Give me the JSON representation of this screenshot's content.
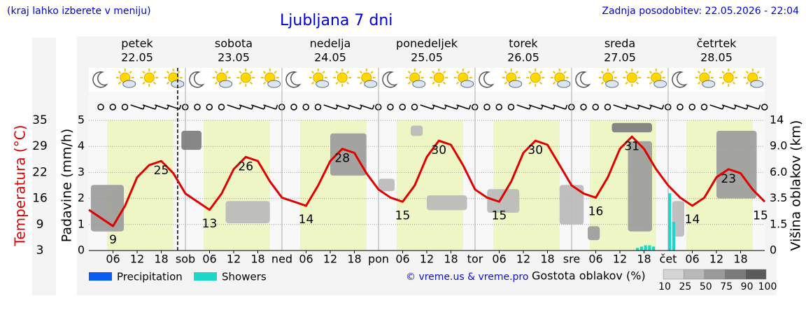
{
  "chart_data": {
    "type": "weather",
    "title": "Ljubljana 7 dni",
    "note": "(kraj lahko izberete v meniju)",
    "updated": "Zadnja posodobitev: 22.05.2026 - 22:04",
    "credit": "© vreme.us & vreme.pro",
    "days": [
      {
        "name": "petek",
        "date": "22.05",
        "color": "#000000"
      },
      {
        "name": "sobota",
        "date": "23.05",
        "color": "#e00000"
      },
      {
        "name": "nedelja",
        "date": "24.05",
        "color": "#e00000"
      },
      {
        "name": "ponedeljek",
        "date": "25.05",
        "color": "#000000"
      },
      {
        "name": "torek",
        "date": "26.05",
        "color": "#000000"
      },
      {
        "name": "sreda",
        "date": "27.05",
        "color": "#000000"
      },
      {
        "name": "četrtek",
        "date": "28.05",
        "color": "#000000"
      }
    ],
    "xlim": [
      0,
      168
    ],
    "xticks": [
      {
        "value": 6,
        "label": "06"
      },
      {
        "value": 12,
        "label": "12"
      },
      {
        "value": 18,
        "label": "18"
      },
      {
        "value": 24,
        "label": "sob"
      },
      {
        "value": 30,
        "label": "06"
      },
      {
        "value": 36,
        "label": "12"
      },
      {
        "value": 42,
        "label": "18"
      },
      {
        "value": 48,
        "label": "ned"
      },
      {
        "value": 54,
        "label": "06"
      },
      {
        "value": 60,
        "label": "12"
      },
      {
        "value": 66,
        "label": "18"
      },
      {
        "value": 72,
        "label": "pon"
      },
      {
        "value": 78,
        "label": "06"
      },
      {
        "value": 84,
        "label": "12"
      },
      {
        "value": 90,
        "label": "18"
      },
      {
        "value": 96,
        "label": "tor"
      },
      {
        "value": 102,
        "label": "06"
      },
      {
        "value": 108,
        "label": "12"
      },
      {
        "value": 114,
        "label": "18"
      },
      {
        "value": 120,
        "label": "sre"
      },
      {
        "value": 126,
        "label": "06"
      },
      {
        "value": 132,
        "label": "12"
      },
      {
        "value": 138,
        "label": "18"
      },
      {
        "value": 144,
        "label": "čet"
      },
      {
        "value": 150,
        "label": "06"
      },
      {
        "value": 156,
        "label": "12"
      },
      {
        "value": 162,
        "label": "18"
      }
    ],
    "ylabel": "Padavine (mm/h)",
    "ylim": [
      0,
      5
    ],
    "yticks": [
      0,
      1,
      2,
      3,
      4,
      5
    ],
    "grid": true,
    "y2label": "Višina oblakov (km)",
    "y2lim": [
      0,
      14
    ],
    "y2ticks": [
      0,
      1.5,
      3.5,
      {
        "value": 6,
        "label": "6.0"
      },
      {
        "value": 9,
        "label": "9.0"
      },
      14
    ],
    "temperature": {
      "label": "Temperatura (°C)",
      "color": "#e00000",
      "ylim": [
        3,
        35
      ],
      "yticks": [
        3,
        {
          "value": 9.4,
          "label": "9"
        },
        {
          "value": 15.8,
          "label": "16"
        },
        {
          "value": 22.2,
          "label": "22"
        },
        {
          "value": 28.6,
          "label": "29"
        },
        35
      ],
      "x": [
        0,
        3,
        6,
        9,
        12,
        15,
        18,
        21,
        24,
        27,
        30,
        33,
        36,
        39,
        42,
        45,
        48,
        51,
        54,
        57,
        60,
        63,
        66,
        69,
        72,
        75,
        78,
        81,
        84,
        87,
        90,
        93,
        96,
        99,
        102,
        105,
        108,
        111,
        114,
        117,
        120,
        123,
        126,
        129,
        132,
        135,
        138,
        141,
        144,
        147,
        150,
        153,
        156,
        159,
        162,
        165,
        168
      ],
      "values": [
        13,
        11,
        9,
        14,
        21,
        24,
        25,
        22,
        17,
        15,
        13,
        17,
        23,
        26,
        25,
        20,
        16,
        15,
        14,
        19,
        25,
        28,
        27,
        22,
        18,
        16,
        15,
        19,
        26,
        30,
        29,
        24,
        18,
        16,
        15,
        20,
        27,
        30,
        29,
        24,
        19,
        17,
        16,
        21,
        28,
        31,
        28,
        23,
        19,
        16,
        14,
        16,
        21,
        23,
        22,
        18,
        15
      ]
    },
    "clouds": {
      "legend_title": "Gostota oblakov (%)",
      "scale": [
        10,
        25,
        50,
        75,
        90,
        100
      ],
      "colors": [
        "#d4d4d4",
        "#b8b8b8",
        "#9a9a9a",
        "#7a7a7a",
        "#5a5a5a"
      ],
      "blocks": [
        {
          "t": [
            0.5,
            8.7
          ],
          "km": [
            1.1,
            4.8
          ],
          "density": 75
        },
        {
          "t": [
            23,
            28
          ],
          "km": [
            8.6,
            12
          ],
          "density": 90
        },
        {
          "t": [
            34,
            45
          ],
          "km": [
            1.6,
            3.3
          ],
          "density": 50
        },
        {
          "t": [
            60,
            69
          ],
          "km": [
            5.7,
            11.5
          ],
          "density": 75
        },
        {
          "t": [
            72,
            76
          ],
          "km": [
            4.2,
            5.4
          ],
          "density": 50
        },
        {
          "t": [
            80,
            83
          ],
          "km": [
            11,
            13
          ],
          "density": 50
        },
        {
          "t": [
            84,
            94
          ],
          "km": [
            2.6,
            3.8
          ],
          "density": 50
        },
        {
          "t": [
            99,
            107
          ],
          "km": [
            2.4,
            4.4
          ],
          "density": 50
        },
        {
          "t": [
            117,
            123
          ],
          "km": [
            1.5,
            4.8
          ],
          "density": 50
        },
        {
          "t": [
            124,
            127
          ],
          "km": [
            0.6,
            1.4
          ],
          "density": 75
        },
        {
          "t": [
            130,
            140
          ],
          "km": [
            11.7,
            13.5
          ],
          "density": 90
        },
        {
          "t": [
            134,
            140
          ],
          "km": [
            1.1,
            10
          ],
          "density": 75
        },
        {
          "t": [
            145,
            148
          ],
          "km": [
            0.8,
            3.3
          ],
          "density": 50
        },
        {
          "t": [
            156,
            166
          ],
          "km": [
            3.5,
            12
          ],
          "density": 75
        }
      ]
    },
    "precipitation": {
      "x": [
        136,
        137,
        138,
        139,
        140,
        144,
        145
      ],
      "series": [
        {
          "name": "Precipitation",
          "color": "#0a5cf5",
          "values": [
            0,
            0,
            0,
            0,
            0,
            0,
            0
          ]
        },
        {
          "name": "Showers",
          "color": "#1cd6c8",
          "values": [
            0.1,
            0.15,
            0.2,
            0.2,
            0.15,
            2.2,
            1.1
          ]
        }
      ]
    }
  }
}
